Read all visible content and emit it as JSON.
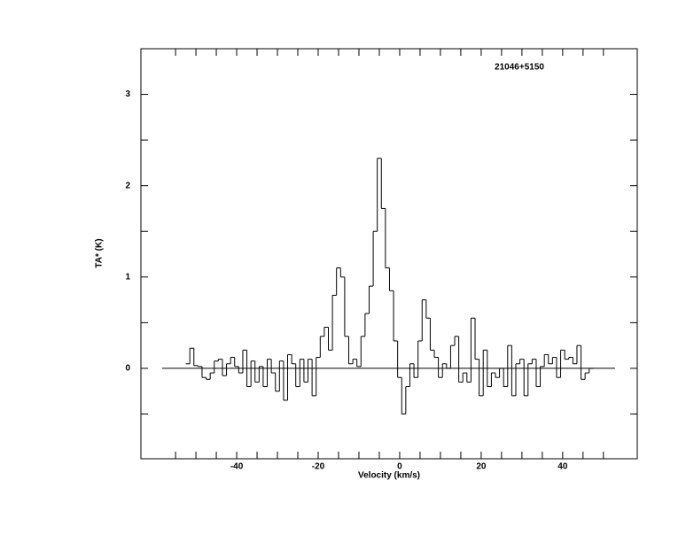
{
  "chart_data": {
    "type": "step",
    "title": "21046+5150",
    "x_label": "Velocity (km/s)",
    "y_label": "TA* (K)",
    "xlim": [
      -63.5,
      58.3
    ],
    "ylim": [
      -0.99,
      3.5
    ],
    "xticks": [
      -40,
      -20,
      0,
      20,
      40
    ],
    "x_minor_ticks": [
      -55,
      -50,
      -45,
      -35,
      -30,
      -25,
      -15,
      -10,
      -5,
      5,
      10,
      15,
      25,
      30,
      35,
      45,
      50
    ],
    "yticks": [
      0,
      1,
      2,
      3
    ],
    "y_minor_ticks": [
      -0.5,
      0.5,
      1.5,
      2.5
    ],
    "x": [
      -52,
      -51,
      -50,
      -49,
      -48,
      -47,
      -46,
      -45,
      -44,
      -43,
      -42,
      -41,
      -40,
      -39,
      -38,
      -37,
      -36,
      -35,
      -34,
      -33,
      -32,
      -31,
      -30,
      -29,
      -28,
      -27,
      -26,
      -25,
      -24,
      -23,
      -22,
      -21,
      -20,
      -19,
      -18,
      -17,
      -16,
      -15,
      -14,
      -13,
      -12,
      -11,
      -10,
      -9,
      -8,
      -7,
      -6,
      -5,
      -4,
      -3,
      -2,
      -1,
      0,
      1,
      2,
      3,
      4,
      5,
      6,
      7,
      8,
      9,
      10,
      11,
      12,
      13,
      14,
      15,
      16,
      17,
      18,
      19,
      20,
      21,
      22,
      23,
      24,
      25,
      26,
      27,
      28,
      29,
      30,
      31,
      32,
      33,
      34,
      35,
      36,
      37,
      38,
      39,
      40,
      41,
      42,
      43,
      44,
      45,
      46,
      47
    ],
    "values": [
      0.05,
      0.22,
      0.03,
      0.02,
      -0.1,
      -0.12,
      -0.05,
      0.08,
      0.1,
      -0.08,
      0.05,
      0.12,
      0.02,
      -0.05,
      0.2,
      -0.2,
      0.08,
      -0.15,
      0.02,
      -0.2,
      0.1,
      -0.05,
      -0.25,
      0.08,
      -0.35,
      0.15,
      0.05,
      -0.2,
      0.1,
      -0.15,
      0.1,
      -0.3,
      0.12,
      0.35,
      0.45,
      0.2,
      0.8,
      1.1,
      1.0,
      0.35,
      0.05,
      0.1,
      0.02,
      0.35,
      0.6,
      0.9,
      1.5,
      2.3,
      1.75,
      1.1,
      0.85,
      0.3,
      -0.1,
      -0.5,
      -0.2,
      0.05,
      -0.1,
      0.3,
      0.75,
      0.55,
      0.2,
      0.12,
      -0.1,
      0.05,
      0.0,
      0.25,
      0.35,
      -0.15,
      -0.05,
      -0.15,
      0.55,
      0.1,
      -0.3,
      0.2,
      -0.2,
      -0.05,
      -0.1,
      0.0,
      -0.2,
      0.25,
      -0.3,
      0.05,
      0.1,
      -0.3,
      0.05,
      0.1,
      -0.2,
      0.02,
      0.15,
      0.05,
      0.12,
      -0.1,
      0.2,
      0.1,
      0.12,
      0.05,
      0.25,
      -0.12,
      -0.05,
      0.0
    ],
    "color": "#000000"
  }
}
